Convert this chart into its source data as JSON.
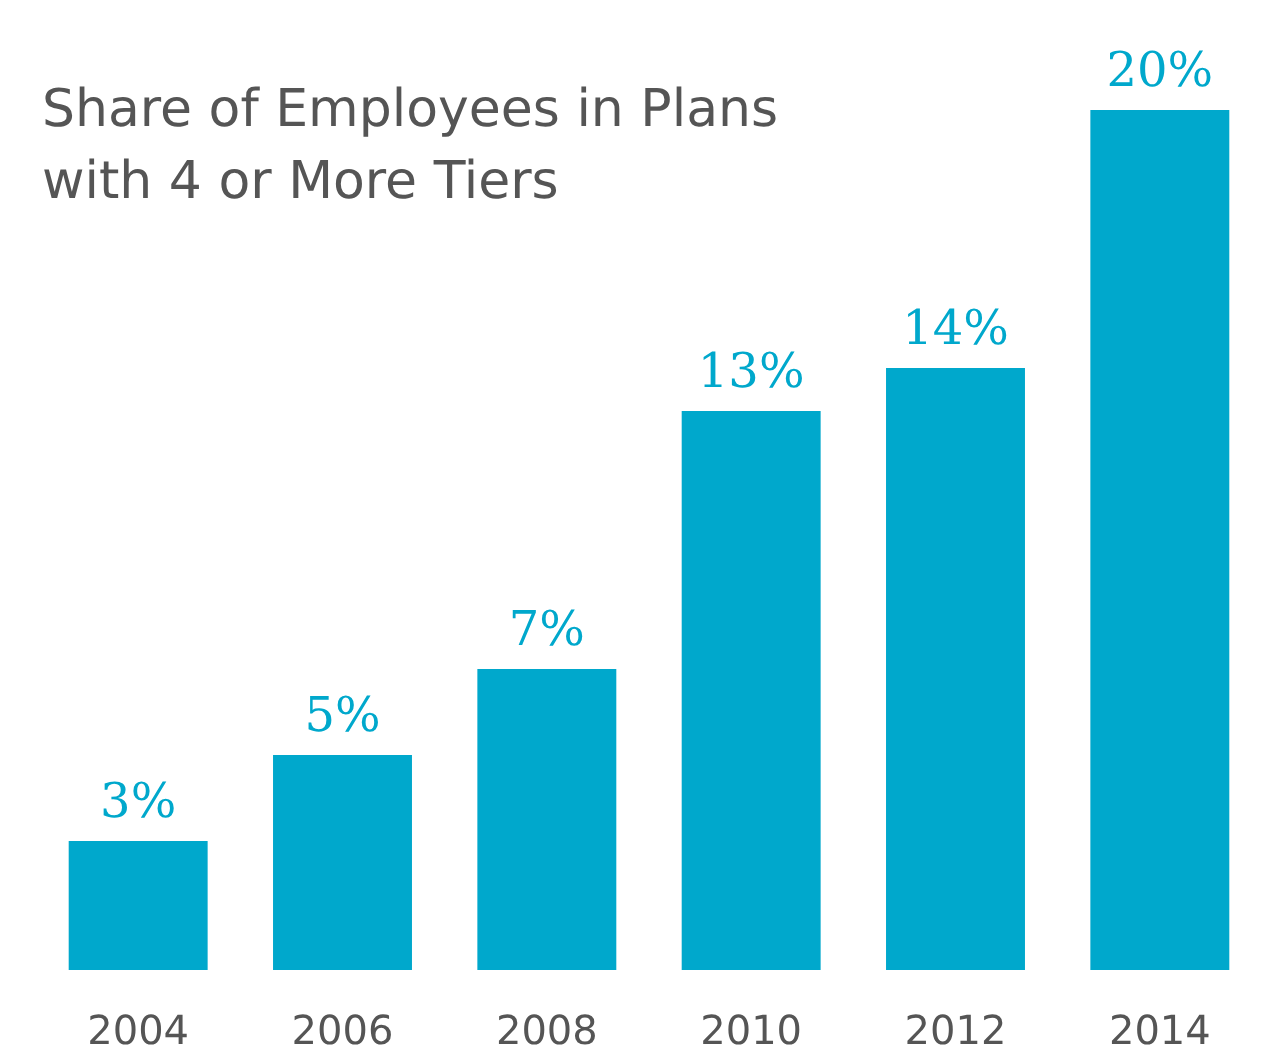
{
  "chart_data": {
    "type": "bar",
    "title": "Share of Employees in Plans\nwith 4 or More Tiers",
    "categories": [
      "2004",
      "2006",
      "2008",
      "2010",
      "2012",
      "2014"
    ],
    "values": [
      3,
      5,
      7,
      13,
      14,
      20
    ],
    "value_labels": [
      "3%",
      "5%",
      "7%",
      "13%",
      "14%",
      "20%"
    ],
    "color": "#00a8cc"
  }
}
